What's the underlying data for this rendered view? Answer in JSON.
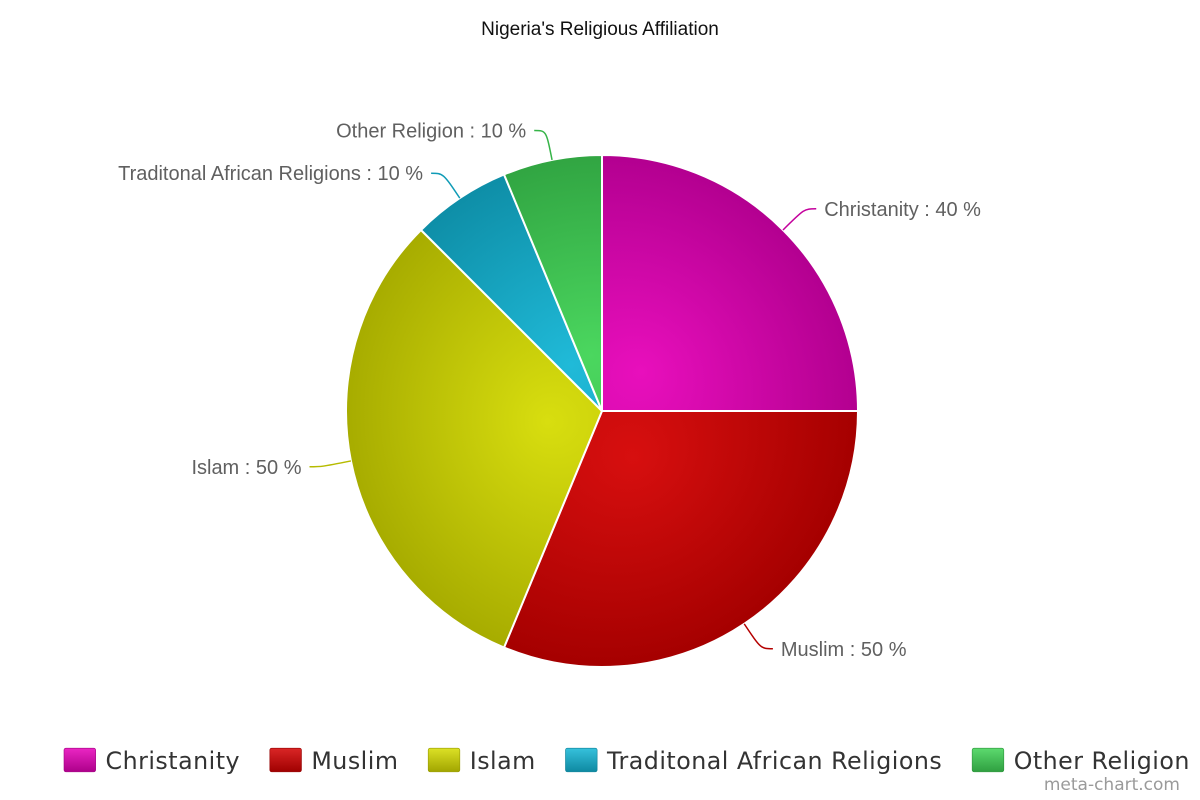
{
  "chart_data": {
    "type": "pie",
    "title": "Nigeria's Religious Affiliation",
    "slices": [
      {
        "name": "Christanity",
        "value": 40,
        "label": "Christanity : 40 %",
        "color": "#e600b8"
      },
      {
        "name": "Muslim",
        "value": 50,
        "label": "Muslim : 50 %",
        "color": "#d40000"
      },
      {
        "name": "Islam",
        "value": 50,
        "label": "Islam : 50 %",
        "color": "#d6dc00"
      },
      {
        "name": "Traditonal African Religions",
        "value": 10,
        "label": "Traditonal African Religions : 10 %",
        "color": "#12b6d6"
      },
      {
        "name": "Other Religion",
        "value": 10,
        "label": "Other Religion : 10 %",
        "color": "#3fd455"
      }
    ],
    "legend_position": "bottom",
    "start_angle_deg": 0,
    "direction": "clockwise"
  },
  "watermark": "meta-chart.com"
}
